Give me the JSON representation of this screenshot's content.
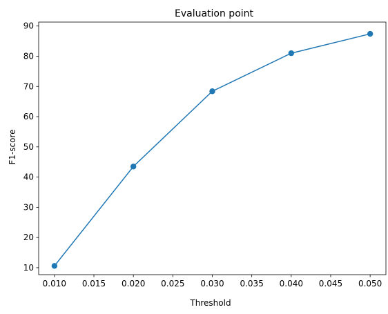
{
  "chart_data": {
    "type": "line",
    "title": "Evaluation point",
    "xlabel": "Threshold",
    "ylabel": "F1-score",
    "x": [
      0.01,
      0.02,
      0.03,
      0.04,
      0.05
    ],
    "series": [
      {
        "values": [
          10.6,
          43.5,
          68.4,
          81.0,
          87.4
        ]
      }
    ],
    "xlim": [
      0.008,
      0.052
    ],
    "ylim": [
      7.7,
      91.3
    ],
    "xticks": [
      "0.010",
      "0.015",
      "0.020",
      "0.025",
      "0.030",
      "0.035",
      "0.040",
      "0.045",
      "0.050"
    ],
    "yticks": [
      "10",
      "20",
      "30",
      "40",
      "50",
      "60",
      "70",
      "80",
      "90"
    ],
    "grid": false,
    "markers": true,
    "color": "#1f77b4"
  }
}
